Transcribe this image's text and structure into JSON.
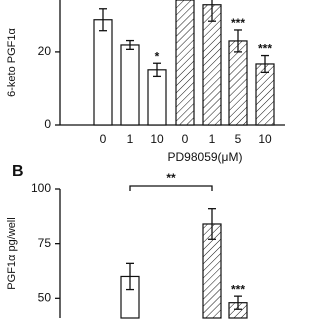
{
  "chart_data": [
    {
      "type": "bar",
      "y_label": "6-keto PGF1α",
      "x_label": "PD98059(μM)",
      "categories": [
        "0",
        "1",
        "10",
        "0",
        "1",
        "5",
        "10"
      ],
      "values": [
        28.8,
        21.9,
        15.1,
        34.2,
        32.9,
        23,
        16.7
      ],
      "errors": [
        3,
        1.2,
        1.8,
        null,
        4.5,
        3,
        2.3
      ],
      "hatched": [
        false,
        false,
        false,
        true,
        true,
        true,
        true
      ],
      "annotations": [
        null,
        null,
        "*",
        null,
        null,
        "***",
        "***"
      ],
      "ylim": [
        0,
        34.2
      ],
      "yticks": [
        0,
        20
      ],
      "color": "#ffffff"
    },
    {
      "type": "bar",
      "panel_label": "B",
      "y_label": "PGF1α pg/well",
      "categories": [
        null,
        null,
        null,
        null,
        null,
        null,
        null
      ],
      "values": [
        null,
        60,
        null,
        null,
        84,
        48,
        null
      ],
      "errors": [
        null,
        6,
        null,
        null,
        7,
        3,
        null
      ],
      "hatched": [
        false,
        false,
        false,
        false,
        true,
        true,
        false
      ],
      "annotations": [
        null,
        null,
        null,
        null,
        null,
        "***",
        null
      ],
      "bracket_label": "**",
      "ylim": [
        41,
        100
      ],
      "yticks": [
        50,
        75,
        100
      ],
      "color": "#ffffff"
    }
  ]
}
